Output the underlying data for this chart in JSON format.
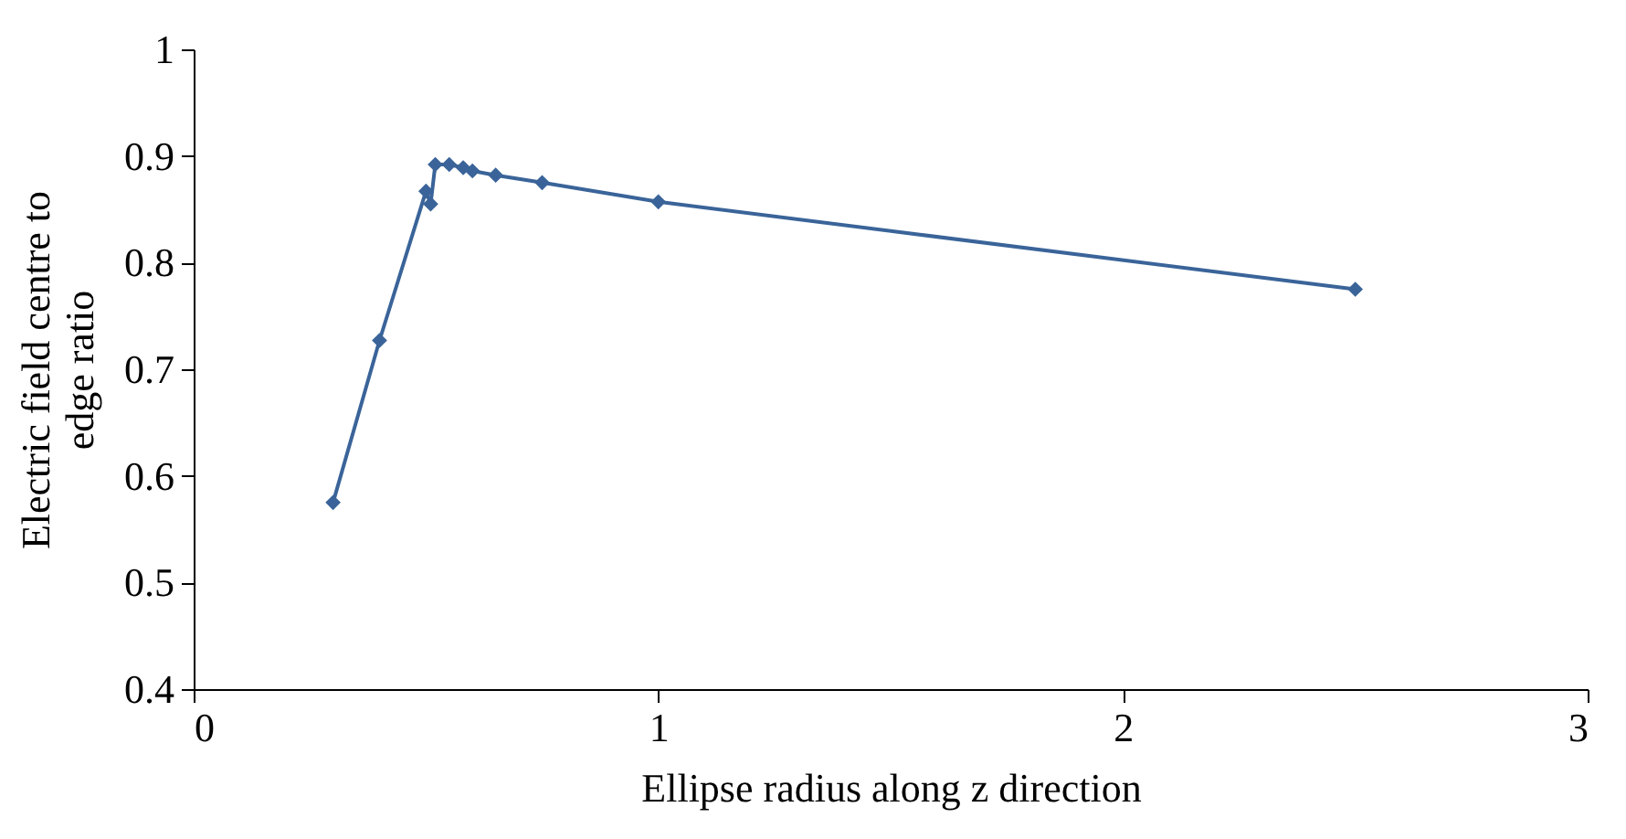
{
  "chart_data": {
    "type": "line",
    "xlabel": "Ellipse radius along z direction",
    "ylabel": "Electric field centre to edge ratio",
    "x": [
      0.3,
      0.4,
      0.5,
      0.51,
      0.52,
      0.55,
      0.58,
      0.6,
      0.65,
      0.75,
      1,
      2.5
    ],
    "series": [
      {
        "color": "#3a6499",
        "values": [
          0.575,
          0.727,
          0.867,
          0.855,
          0.892,
          0.892,
          0.889,
          0.886,
          0.882,
          0.875,
          0.857,
          0.775
        ]
      }
    ],
    "xlim": [
      0,
      3
    ],
    "xticks": [
      0,
      1,
      2,
      3
    ],
    "ylim": [
      0.4,
      1
    ],
    "yticks": [
      0.4,
      0.5,
      0.6,
      0.7,
      0.8,
      0.9,
      1
    ],
    "grid": false,
    "marker": "diamond",
    "line_style": "solid"
  }
}
